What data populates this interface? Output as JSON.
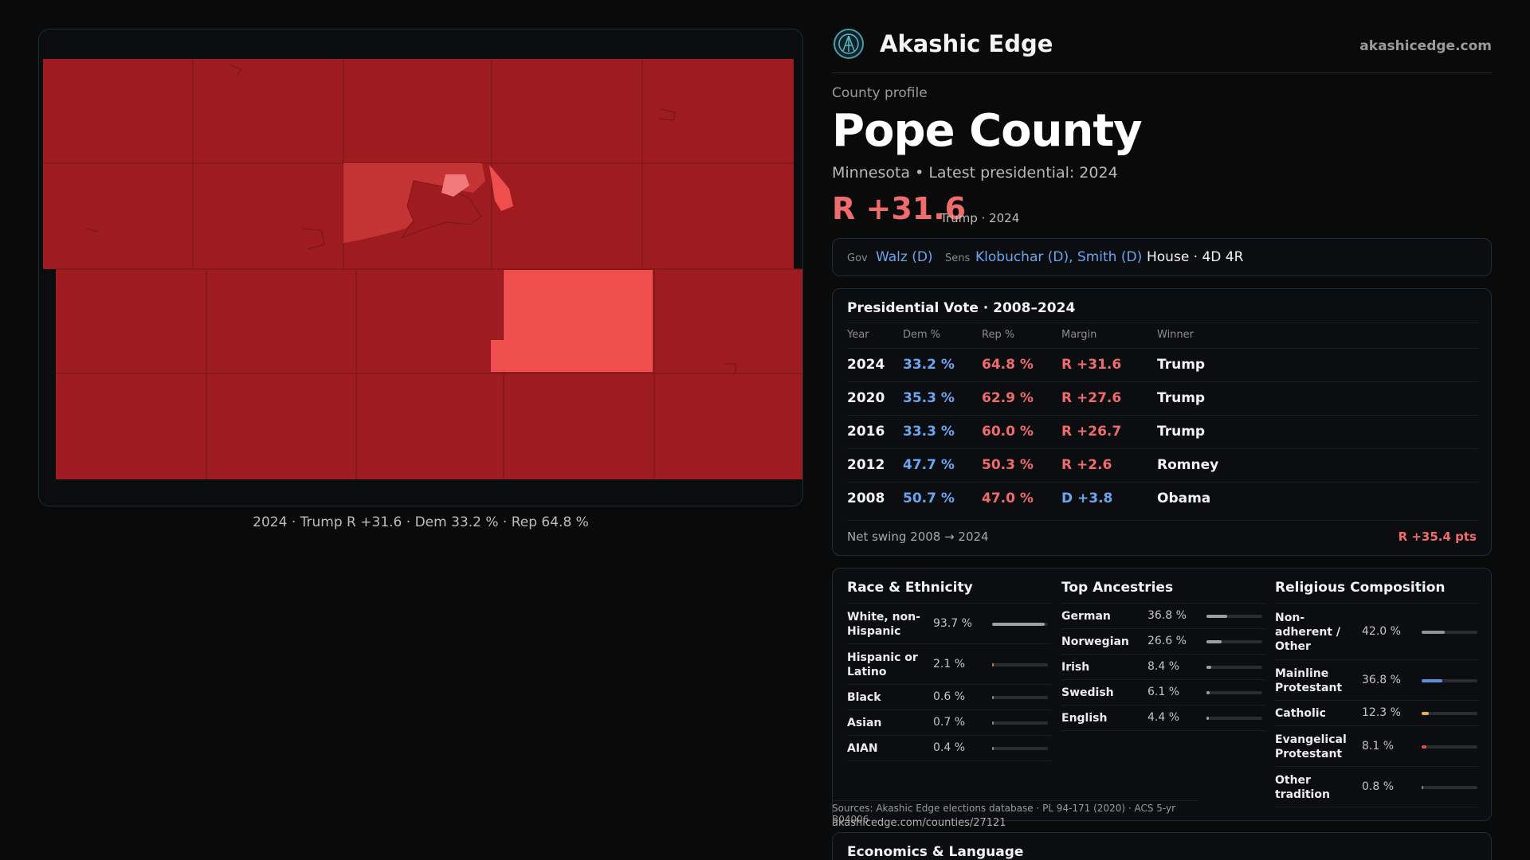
{
  "brand": {
    "name": "Akashic Edge",
    "url": "akashicedge.com"
  },
  "profile": {
    "kicker": "County profile",
    "county": "Pope County",
    "subtitle": "Minnesota • Latest presidential: 2024",
    "margin": "R +31.6",
    "margin_note": "Trump · 2024"
  },
  "officials": {
    "gov_label": "Gov",
    "gov": "Walz (D)",
    "sens_label": "Sens",
    "sens": "Klobuchar (D), Smith (D)",
    "house": "House · 4D 4R"
  },
  "map": {
    "caption": "2024 · Trump R +31.6 · Dem 33.2 % · Rep 64.8 %",
    "colors": {
      "base": "#9e1c20",
      "mid": "#c53434",
      "light": "#ef4e4e",
      "pale": "#f27a7a",
      "border": "#7a1518"
    }
  },
  "presidential": {
    "title": "Presidential Vote · 2008–2024",
    "headers": [
      "Year",
      "Dem %",
      "Rep %",
      "Margin",
      "Winner"
    ],
    "rows": [
      {
        "year": "2024",
        "dem": "33.2 %",
        "rep": "64.8 %",
        "margin": "R +31.6",
        "party": "R",
        "winner": "Trump"
      },
      {
        "year": "2020",
        "dem": "35.3 %",
        "rep": "62.9 %",
        "margin": "R +27.6",
        "party": "R",
        "winner": "Trump"
      },
      {
        "year": "2016",
        "dem": "33.3 %",
        "rep": "60.0 %",
        "margin": "R +26.7",
        "party": "R",
        "winner": "Trump"
      },
      {
        "year": "2012",
        "dem": "47.7 %",
        "rep": "50.3 %",
        "margin": "R +2.6",
        "party": "R",
        "winner": "Romney"
      },
      {
        "year": "2008",
        "dem": "50.7 %",
        "rep": "47.0 %",
        "margin": "D +3.8",
        "party": "D",
        "winner": "Obama"
      }
    ],
    "swing_label": "Net swing 2008 → 2024",
    "swing_value": "R +35.4 pts"
  },
  "race": {
    "title": "Race & Ethnicity",
    "items": [
      {
        "name": "White, non-Hispanic",
        "value": "93.7 %",
        "share": 0.937,
        "color": "#9aa0a8"
      },
      {
        "name": "Hispanic or Latino",
        "value": "2.1 %",
        "share": 0.021,
        "color": "#e07a3a"
      },
      {
        "name": "Black",
        "value": "0.6 %",
        "share": 0.006,
        "color": "#8a8a8a"
      },
      {
        "name": "Asian",
        "value": "0.7 %",
        "share": 0.007,
        "color": "#8a8a8a"
      },
      {
        "name": "AIAN",
        "value": "0.4 %",
        "share": 0.004,
        "color": "#8a8a8a"
      }
    ]
  },
  "ancestry": {
    "title": "Top Ancestries",
    "items": [
      {
        "name": "German",
        "value": "36.8 %",
        "share": 0.368,
        "color": "#9aa0a8"
      },
      {
        "name": "Norwegian",
        "value": "26.6 %",
        "share": 0.266,
        "color": "#9aa0a8"
      },
      {
        "name": "Irish",
        "value": "8.4 %",
        "share": 0.084,
        "color": "#9aa0a8"
      },
      {
        "name": "Swedish",
        "value": "6.1 %",
        "share": 0.061,
        "color": "#9aa0a8"
      },
      {
        "name": "English",
        "value": "4.4 %",
        "share": 0.044,
        "color": "#9aa0a8"
      }
    ]
  },
  "religion": {
    "title": "Religious Composition",
    "items": [
      {
        "name": "Non-adherent / Other",
        "value": "42.0 %",
        "share": 0.42,
        "color": "#8f949c"
      },
      {
        "name": "Mainline Protestant",
        "value": "36.8 %",
        "share": 0.368,
        "color": "#5d8fe0"
      },
      {
        "name": "Catholic",
        "value": "12.3 %",
        "share": 0.123,
        "color": "#e0b23a"
      },
      {
        "name": "Evangelical Protestant",
        "value": "8.1 %",
        "share": 0.081,
        "color": "#e05050"
      },
      {
        "name": "Other tradition",
        "value": "0.8 %",
        "share": 0.008,
        "color": "#8a8a8a"
      }
    ]
  },
  "sources": {
    "text": "Sources: Akashic Edge elections database · PL 94-171 (2020) · ACS 5-yr B04006",
    "url": "akashicedge.com/counties/27121"
  },
  "economics": {
    "title": "Economics & Language"
  }
}
